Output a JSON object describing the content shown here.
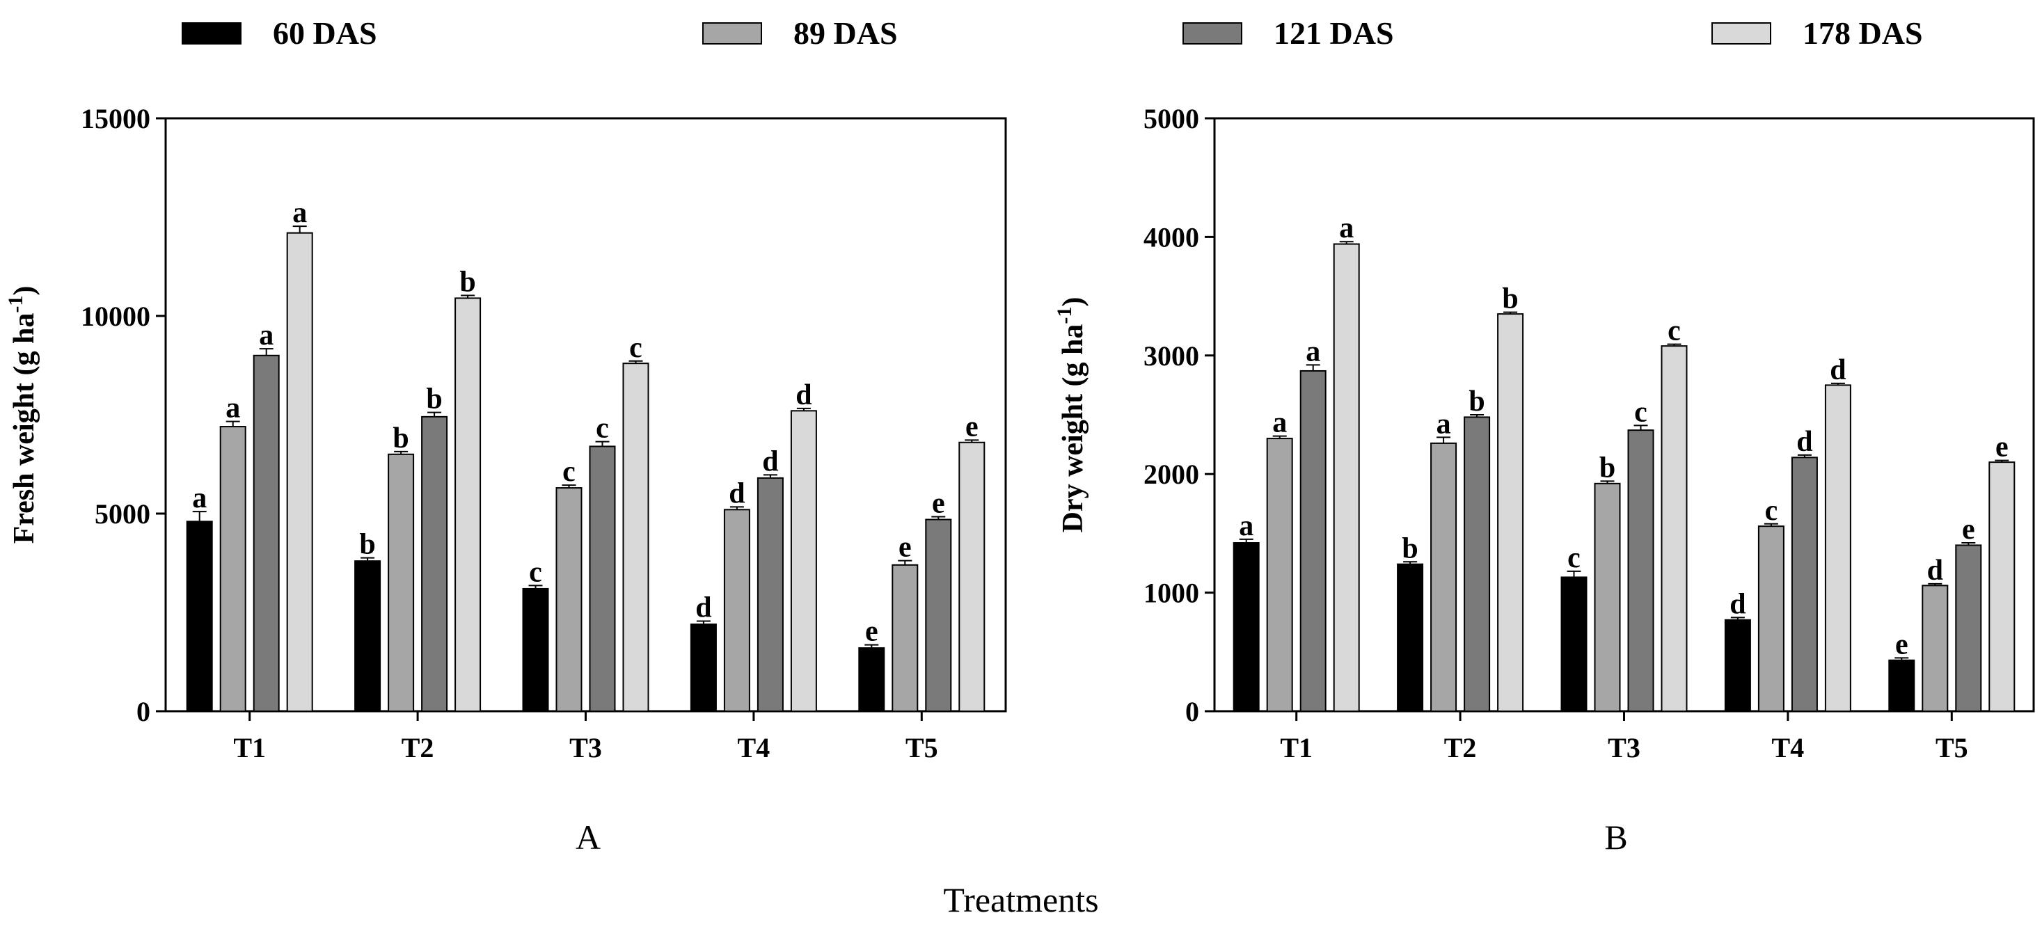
{
  "legend": [
    {
      "label": "60 DAS",
      "color": "#000000"
    },
    {
      "label": "89 DAS",
      "color": "#a6a6a6"
    },
    {
      "label": "121 DAS",
      "color": "#7a7a7a"
    },
    {
      "label": "178 DAS",
      "color": "#d9d9d9"
    }
  ],
  "xlabel": "Treatments",
  "chart_data": [
    {
      "type": "bar",
      "panel": "A",
      "ylabel": "Fresh weight (g ha",
      "ylabel_sup": "-1",
      "ylabel_end": ")",
      "ylim": [
        0,
        15000
      ],
      "yticks": [
        "0",
        "5000",
        "10000",
        "15000"
      ],
      "ytick_values": [
        0,
        5000,
        10000,
        15000
      ],
      "grid": false,
      "legend_position": "top",
      "categories": [
        "T1",
        "T2",
        "T3",
        "T4",
        "T5"
      ],
      "series": [
        {
          "name": "60 DAS",
          "values": [
            4800,
            3800,
            3100,
            2200,
            1600
          ],
          "errors": [
            250,
            80,
            80,
            80,
            80
          ],
          "letters": [
            "a",
            "b",
            "c",
            "d",
            "e"
          ]
        },
        {
          "name": "89 DAS",
          "values": [
            7200,
            6500,
            5650,
            5100,
            3700
          ],
          "errors": [
            130,
            70,
            70,
            70,
            110
          ],
          "letters": [
            "a",
            "b",
            "c",
            "d",
            "e"
          ]
        },
        {
          "name": "121 DAS",
          "values": [
            9000,
            7450,
            6700,
            5900,
            4850
          ],
          "errors": [
            170,
            110,
            120,
            80,
            70
          ],
          "letters": [
            "a",
            "b",
            "c",
            "d",
            "e"
          ]
        },
        {
          "name": "178 DAS",
          "values": [
            12100,
            10450,
            8800,
            7600,
            6800
          ],
          "errors": [
            170,
            70,
            60,
            60,
            60
          ],
          "letters": [
            "a",
            "b",
            "c",
            "d",
            "e"
          ]
        }
      ]
    },
    {
      "type": "bar",
      "panel": "B",
      "ylabel": "Dry weight (g ha",
      "ylabel_sup": "-1",
      "ylabel_end": ")",
      "ylim": [
        0,
        5000
      ],
      "yticks": [
        "0",
        "1000",
        "2000",
        "3000",
        "4000",
        "5000"
      ],
      "ytick_values": [
        0,
        1000,
        2000,
        3000,
        4000,
        5000
      ],
      "grid": false,
      "legend_position": "top",
      "categories": [
        "T1",
        "T2",
        "T3",
        "T4",
        "T5"
      ],
      "series": [
        {
          "name": "60 DAS",
          "values": [
            1420,
            1240,
            1130,
            770,
            430
          ],
          "errors": [
            30,
            20,
            50,
            20,
            20
          ],
          "letters": [
            "a",
            "b",
            "c",
            "d",
            "e"
          ]
        },
        {
          "name": "89 DAS",
          "values": [
            2300,
            2260,
            1920,
            1560,
            1060
          ],
          "errors": [
            20,
            50,
            20,
            20,
            15
          ],
          "letters": [
            "a",
            "a",
            "b",
            "c",
            "d"
          ]
        },
        {
          "name": "121 DAS",
          "values": [
            2870,
            2480,
            2370,
            2140,
            1400
          ],
          "errors": [
            50,
            20,
            40,
            20,
            20
          ],
          "letters": [
            "a",
            "b",
            "c",
            "d",
            "e"
          ]
        },
        {
          "name": "178 DAS",
          "values": [
            3940,
            3350,
            3080,
            2750,
            2100
          ],
          "errors": [
            20,
            15,
            15,
            15,
            15
          ],
          "letters": [
            "a",
            "b",
            "c",
            "d",
            "e"
          ]
        }
      ]
    }
  ]
}
